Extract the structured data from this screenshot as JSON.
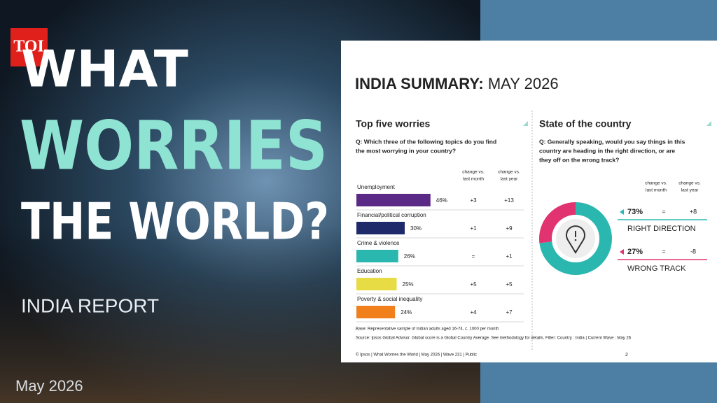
{
  "logo": "TOI",
  "cover": {
    "line1": "WHAT",
    "line2": "WORRIES",
    "line3": "THE WORLD?",
    "subtitle": "INDIA REPORT",
    "date": "May 2026"
  },
  "report": {
    "title_bold": "INDIA SUMMARY:",
    "title_rest": "MAY 2026",
    "footnotes": [
      "Base: Representative sample of Indian adults aged 16-74, c. 1000 per month",
      "Source: Ipsos Global Advisor. Global score is a Global Country Average. See methodology for details. Filter: Country : India | Current Wave : May 26",
      "© Ipsos | What Worries the World | May 2026 | Wave 231 | Public"
    ],
    "page_number": "2"
  },
  "chart_data": [
    {
      "type": "bar",
      "title": "Top five worries",
      "question": [
        "Q: Which three of the following topics do you find",
        "the most worrying in your country?"
      ],
      "column_headers": [
        [
          "change vs.",
          "last month"
        ],
        [
          "change vs.",
          "last year"
        ]
      ],
      "categories": [
        "Unemployment",
        "Financial/political corruption",
        "Crime & violence",
        "Education",
        "Poverty & social inequality"
      ],
      "values": [
        46,
        30,
        26,
        25,
        24
      ],
      "value_labels": [
        "46%",
        "30%",
        "26%",
        "25%",
        "24%"
      ],
      "colors": [
        "#5b2a86",
        "#1f2a6b",
        "#2ab7b0",
        "#e8dc45",
        "#f07f1c"
      ],
      "change_month": [
        "+3",
        "+1",
        "=",
        "+5",
        "+4"
      ],
      "change_year": [
        "+13",
        "+9",
        "+1",
        "+5",
        "+7"
      ]
    },
    {
      "type": "pie",
      "title": "State of the country",
      "question": [
        "Q: Generally speaking, would you say things in this",
        "country are heading in the right direction, or are",
        "they off on the wrong track?"
      ],
      "column_headers": [
        [
          "change vs.",
          "last month"
        ],
        [
          "change vs.",
          "last year"
        ]
      ],
      "categories": [
        "RIGHT DIRECTION",
        "WRONG TRACK"
      ],
      "values": [
        73,
        27
      ],
      "value_labels": [
        "73%",
        "27%"
      ],
      "colors": [
        "#2ab7b0",
        "#e0336f"
      ],
      "change_month": [
        "=",
        "="
      ],
      "change_year": [
        "+8",
        "-8"
      ]
    }
  ]
}
